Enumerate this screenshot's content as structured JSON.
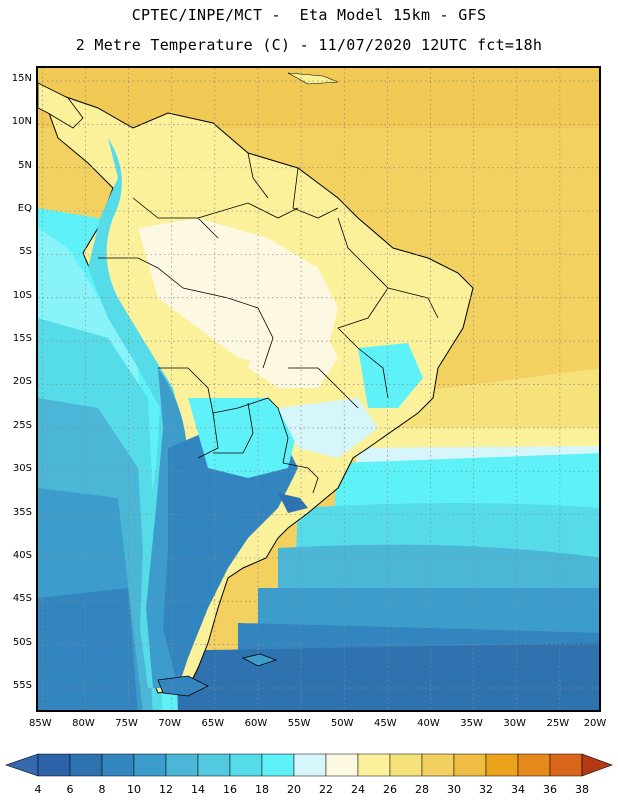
{
  "header": {
    "line1": "CPTEC/INPE/MCT -  Eta Model 15km - GFS",
    "line2": "2 Metre Temperature (C) - 11/07/2020 12UTC fct=18h"
  },
  "axes": {
    "lat_labels": [
      "15N",
      "10N",
      "5N",
      "EQ",
      "5S",
      "10S",
      "15S",
      "20S",
      "25S",
      "30S",
      "35S",
      "40S",
      "45S",
      "50S",
      "55S"
    ],
    "lon_labels": [
      "85W",
      "80W",
      "75W",
      "70W",
      "65W",
      "60W",
      "55W",
      "50W",
      "45W",
      "40W",
      "35W",
      "30W",
      "25W",
      "20W"
    ],
    "lat_range": [
      -58,
      16.5
    ],
    "lon_range": [
      -85.5,
      -20
    ],
    "grid": "dotted"
  },
  "legend": {
    "ticks": [
      "4",
      "6",
      "8",
      "10",
      "12",
      "14",
      "16",
      "18",
      "20",
      "22",
      "24",
      "26",
      "28",
      "30",
      "32",
      "34",
      "36",
      "38"
    ],
    "colors": [
      "#2b62a8",
      "#2e72b0",
      "#3385bf",
      "#3c9dcc",
      "#4bb6d6",
      "#53c9e0",
      "#56dce8",
      "#5ef2f8",
      "#d6f6fb",
      "#fdf8e2",
      "#fbf19a",
      "#f6e27a",
      "#f2d060",
      "#eebd42",
      "#eba21d",
      "#e58a1a",
      "#d9661a",
      "#c9460f",
      "#b33a13"
    ],
    "left_arrow_color": "#3569ae",
    "right_arrow_color": "#b33a13"
  }
}
